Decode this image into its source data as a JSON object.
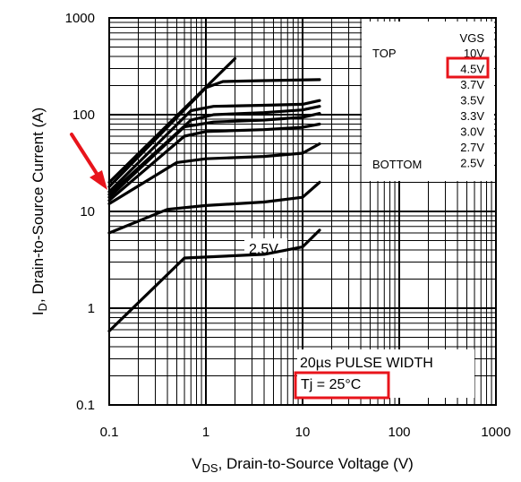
{
  "chart_data": {
    "type": "line",
    "x_scale": "log",
    "y_scale": "log",
    "xlim": [
      0.1,
      1000
    ],
    "ylim": [
      0.1,
      1000
    ],
    "grid": true,
    "x_ticks": [
      "0.1",
      "1",
      "10",
      "100",
      "1000"
    ],
    "y_ticks": [
      "1000",
      "100",
      "10",
      "1",
      "0.1"
    ],
    "xlabel_main": "V",
    "xlabel_sub": "DS",
    "xlabel_rest": ", Drain-to-Source Voltage (V)",
    "ylabel_main": "I",
    "ylabel_sub": "D",
    "ylabel_rest": ", Drain-to-Source Current (A)",
    "legend": {
      "header": "VGS",
      "top_label": "TOP",
      "bottom_label": "BOTTOM",
      "entries": [
        "10V",
        "4.5V",
        "3.7V",
        "3.5V",
        "3.3V",
        "3.0V",
        "2.7V",
        "2.5V"
      ],
      "highlighted": "4.5V",
      "placement": "top-right"
    },
    "curve_label": "2.5V",
    "annotation_pulse": "20µs PULSE WIDTH",
    "annotation_tj": "Tj = 25°C",
    "highlight_color": "#e8141b",
    "series": [
      {
        "x": [
          0.1,
          2.0
        ],
        "y": [
          20,
          380
        ]
      },
      {
        "x": [
          0.1,
          1.0,
          1.5,
          4.0,
          15
        ],
        "y": [
          18,
          190,
          220,
          225,
          230
        ]
      },
      {
        "x": [
          0.1,
          0.7,
          1.2,
          4.0,
          10,
          15
        ],
        "y": [
          16,
          110,
          122,
          125,
          128,
          140
        ]
      },
      {
        "x": [
          0.1,
          0.7,
          1.2,
          4.0,
          10,
          15
        ],
        "y": [
          15,
          88,
          100,
          105,
          112,
          122
        ]
      },
      {
        "x": [
          0.1,
          0.6,
          1.2,
          4.0,
          10,
          15
        ],
        "y": [
          14,
          75,
          84,
          88,
          94,
          103
        ]
      },
      {
        "x": [
          0.1,
          0.6,
          1.0,
          4.0,
          10,
          15
        ],
        "y": [
          13,
          60,
          67,
          70,
          74,
          80
        ]
      },
      {
        "x": [
          0.1,
          0.5,
          1.0,
          4.0,
          10,
          15
        ],
        "y": [
          12,
          32,
          35,
          37,
          40,
          50
        ]
      },
      {
        "x": [
          0.1,
          0.4,
          1.0,
          4.0,
          10,
          15
        ],
        "y": [
          6,
          10.5,
          11.5,
          12.5,
          14,
          20
        ]
      },
      {
        "x": [
          0.1,
          0.6,
          4.0,
          10,
          15
        ],
        "y": [
          0.58,
          3.3,
          3.6,
          4.3,
          6.4
        ]
      }
    ],
    "arrow_target": {
      "x": 0.1,
      "y": 16
    }
  }
}
